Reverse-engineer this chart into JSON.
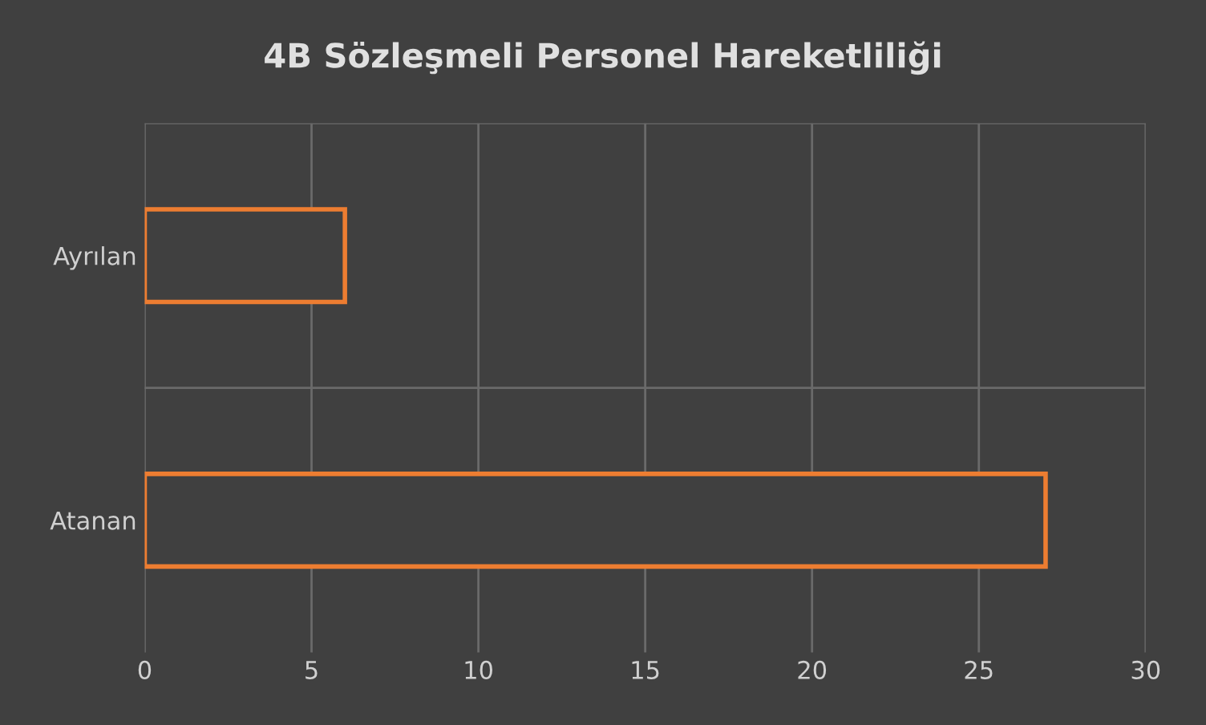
{
  "chart_data": {
    "type": "bar",
    "orientation": "horizontal",
    "title": "4B Sözleşmeli Personel Hareketliliği",
    "categories": [
      "Ayrılan",
      "Atanan"
    ],
    "series": [
      {
        "color": "#ed7d31",
        "values": [
          6,
          27
        ]
      }
    ],
    "xlim": [
      0,
      30
    ],
    "xticks": [
      0,
      5,
      10,
      15,
      20,
      25,
      30
    ],
    "grid": "x",
    "legend": false
  }
}
